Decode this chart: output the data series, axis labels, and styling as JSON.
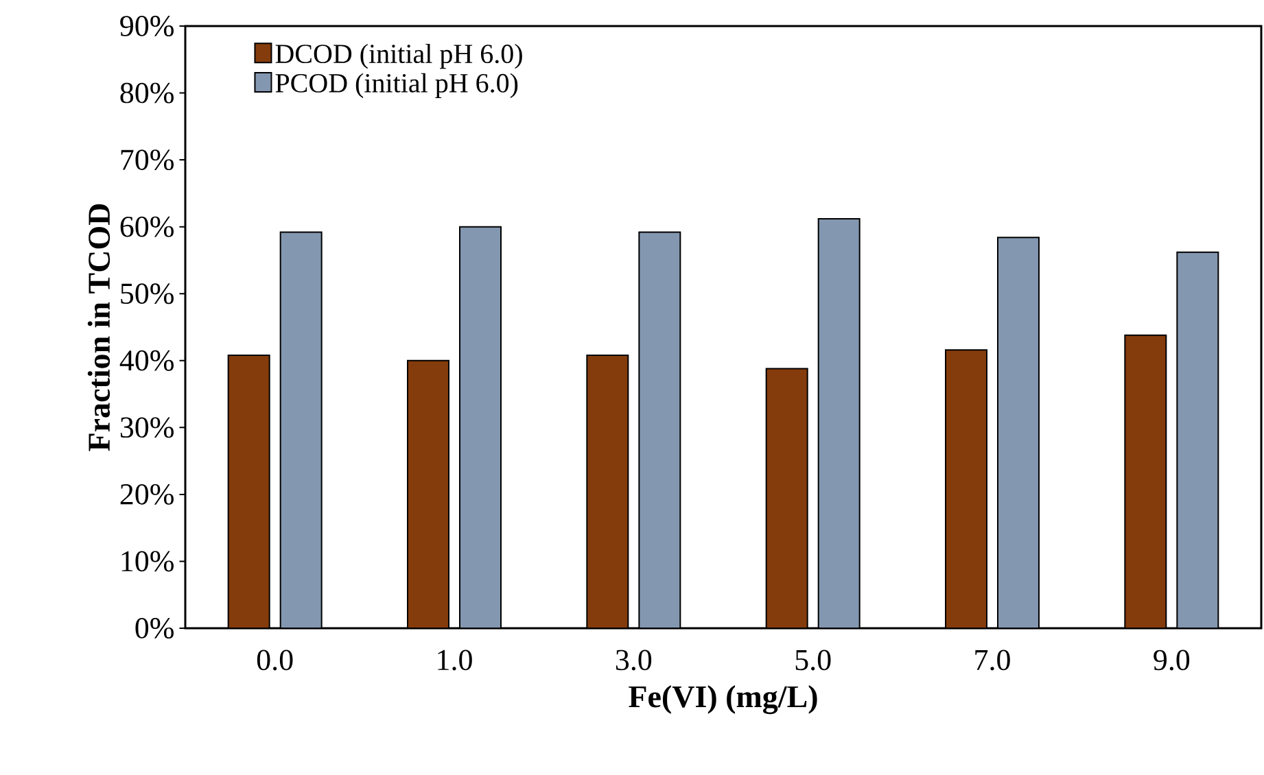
{
  "chart_data": {
    "type": "bar",
    "xlabel": "Fe(VI) (mg/L)",
    "ylabel": "Fraction in TCOD",
    "categories": [
      "0.0",
      "1.0",
      "3.0",
      "5.0",
      "7.0",
      "9.0"
    ],
    "series": [
      {
        "name": "DCOD (initial pH 6.0)",
        "color": "#843c0c",
        "values": [
          40.8,
          40.0,
          40.8,
          38.8,
          41.6,
          43.8
        ]
      },
      {
        "name": "PCOD (initial pH 6.0)",
        "color": "#8497b0",
        "values": [
          59.2,
          60.0,
          59.2,
          61.2,
          58.4,
          56.2
        ]
      }
    ],
    "ylim": [
      0,
      90
    ],
    "yticks": [
      {
        "value": 0,
        "label": "0%"
      },
      {
        "value": 10,
        "label": "10%"
      },
      {
        "value": 20,
        "label": "20%"
      },
      {
        "value": 30,
        "label": "30%"
      },
      {
        "value": 40,
        "label": "40%"
      },
      {
        "value": 50,
        "label": "50%"
      },
      {
        "value": 60,
        "label": "60%"
      },
      {
        "value": 70,
        "label": "70%"
      },
      {
        "value": 80,
        "label": "80%"
      },
      {
        "value": 90,
        "label": "90%"
      }
    ],
    "legend": "top left",
    "grid": false
  }
}
